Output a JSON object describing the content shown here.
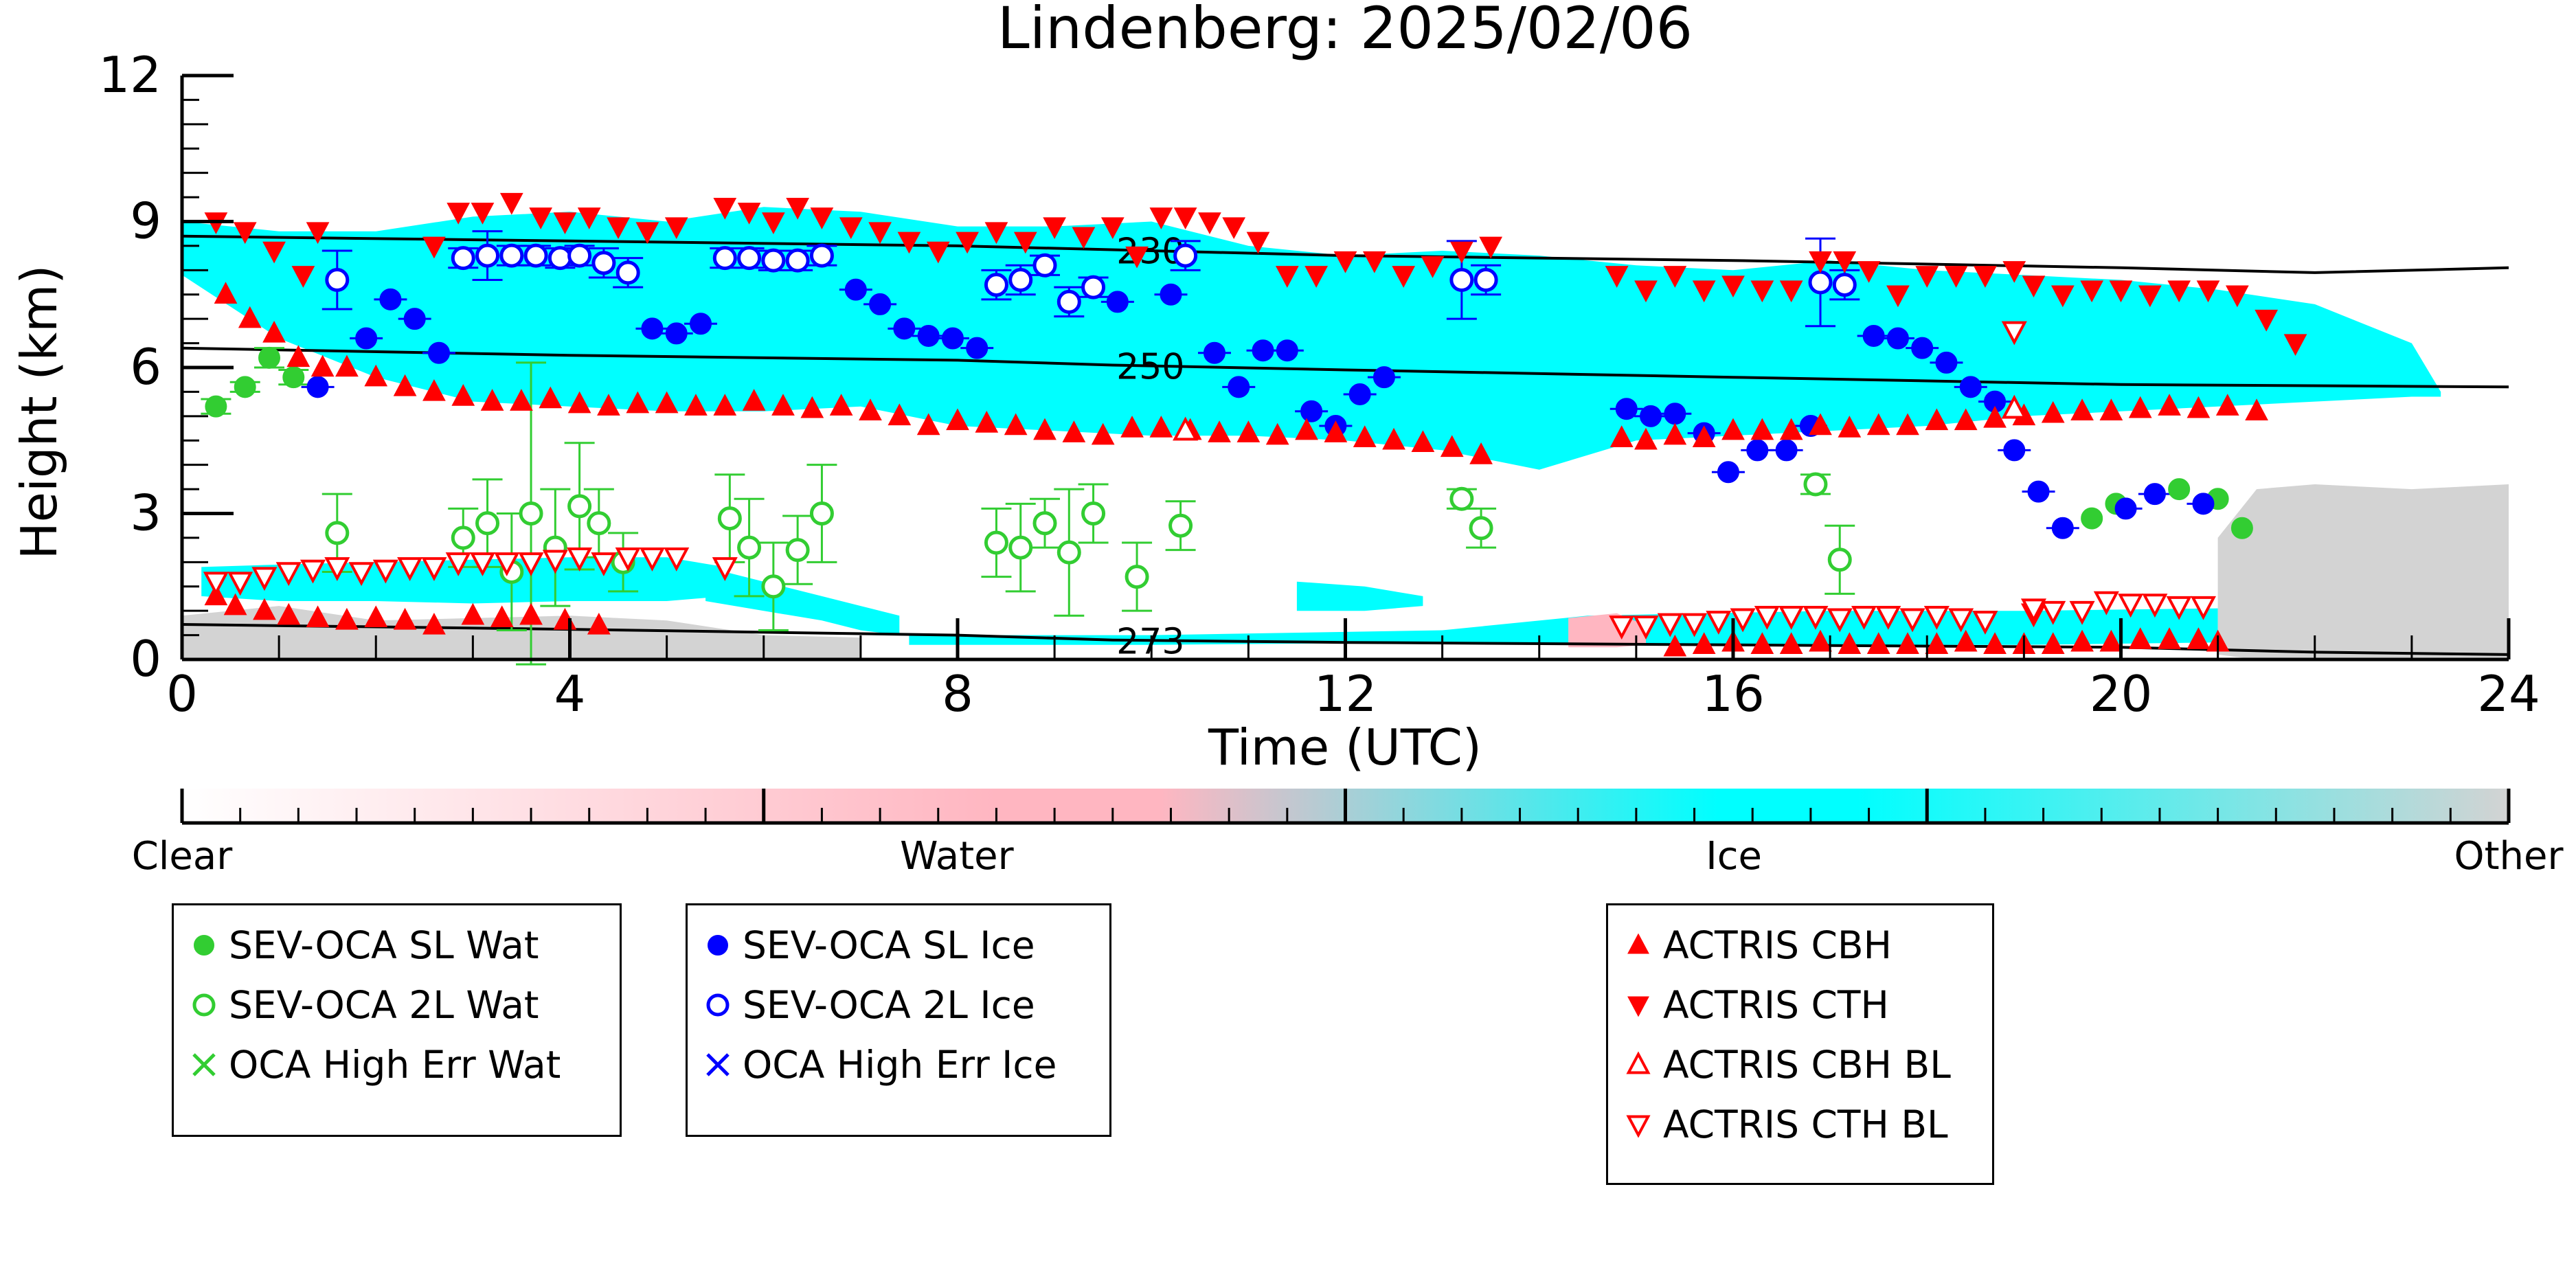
{
  "chart_data": {
    "type": "scatter",
    "title": "Lindenberg: 2025/02/06",
    "xlabel": "Time (UTC)",
    "ylabel": "Height (km)",
    "xlim": [
      0,
      24
    ],
    "ylim": [
      0,
      12
    ],
    "xticks": [
      "0",
      "4",
      "8",
      "12",
      "16",
      "20",
      "24"
    ],
    "yticks": [
      "0",
      "3",
      "6",
      "9",
      "12"
    ],
    "colorbar": {
      "labels": [
        "Clear",
        "Water",
        "Ice",
        "Other"
      ],
      "colors": [
        "#ffffff",
        "#ffb6c1",
        "#00ffff",
        "#d3d3d3"
      ]
    },
    "contours": [
      {
        "label": "230",
        "x": [
          0,
          4,
          8,
          10,
          12,
          16,
          20,
          22,
          24
        ],
        "y": [
          8.7,
          8.6,
          8.5,
          8.4,
          8.3,
          8.2,
          8.05,
          7.95,
          8.05
        ]
      },
      {
        "label": "250",
        "x": [
          0,
          4,
          8,
          9.6,
          12,
          16,
          20,
          24
        ],
        "y": [
          6.4,
          6.25,
          6.15,
          6.05,
          5.95,
          5.8,
          5.65,
          5.6
        ]
      },
      {
        "label": "273",
        "x": [
          0,
          4,
          8,
          9.6,
          12,
          16,
          20,
          22,
          24
        ],
        "y": [
          0.72,
          0.62,
          0.5,
          0.4,
          0.35,
          0.3,
          0.25,
          0.15,
          0.1
        ]
      }
    ],
    "cloud_regions": [
      {
        "type": "ice",
        "x": [
          0,
          1,
          2,
          3,
          4,
          5,
          6,
          7,
          8,
          9,
          10,
          11,
          12,
          13,
          14,
          15,
          16,
          17,
          18,
          19,
          20,
          21,
          22,
          23,
          23.3
        ],
        "top": [
          9.0,
          8.8,
          8.8,
          9.1,
          9.2,
          9.0,
          9.3,
          9.2,
          8.9,
          8.9,
          9.0,
          8.5,
          8.3,
          8.4,
          8.3,
          8.1,
          8.0,
          8.2,
          8.0,
          7.9,
          7.8,
          7.6,
          7.3,
          6.5,
          5.5
        ],
        "base": [
          7.9,
          6.6,
          5.8,
          5.3,
          5.2,
          5.1,
          5.1,
          5.2,
          4.8,
          4.7,
          4.6,
          4.6,
          4.5,
          4.3,
          3.9,
          4.5,
          4.6,
          4.7,
          4.8,
          5.0,
          5.1,
          5.2,
          5.3,
          5.4,
          5.4
        ]
      },
      {
        "type": "ice",
        "x": [
          0.2,
          1,
          2,
          3,
          4,
          5,
          5.6
        ],
        "top": [
          1.9,
          1.95,
          2.0,
          2.05,
          2.1,
          2.1,
          1.9
        ],
        "base": [
          1.3,
          1.2,
          1.2,
          1.15,
          1.2,
          1.2,
          1.3
        ]
      },
      {
        "type": "ice",
        "x": [
          5.4,
          6.0,
          6.6,
          7.0,
          7.4
        ],
        "top": [
          1.9,
          1.6,
          1.3,
          1.1,
          0.9
        ],
        "base": [
          1.2,
          1.0,
          0.8,
          0.6,
          0.5
        ]
      },
      {
        "type": "ice",
        "x": [
          11.5,
          12.2,
          12.8
        ],
        "top": [
          1.6,
          1.5,
          1.3
        ],
        "base": [
          1.0,
          1.0,
          1.1
        ]
      },
      {
        "type": "ice",
        "x": [
          7.5,
          10,
          13,
          14.5,
          17,
          19,
          21
        ],
        "top": [
          0.5,
          0.5,
          0.6,
          0.9,
          1.0,
          1.0,
          1.05
        ],
        "base": [
          0.3,
          0.3,
          0.35,
          0.3,
          0.3,
          0.3,
          0.35
        ]
      },
      {
        "type": "water",
        "x": [
          14.3,
          14.8,
          15.1
        ],
        "top": [
          0.85,
          0.95,
          0.7
        ],
        "base": [
          0.25,
          0.25,
          0.3
        ]
      },
      {
        "type": "other",
        "x": [
          0,
          1,
          2,
          3,
          4,
          5,
          6,
          7
        ],
        "top": [
          0.9,
          1.1,
          0.8,
          0.85,
          0.9,
          0.8,
          0.5,
          0.45
        ],
        "base": [
          0,
          0,
          0,
          0,
          0,
          0,
          0,
          0
        ]
      },
      {
        "type": "other",
        "x": [
          21.0,
          21.4,
          22,
          23,
          24
        ],
        "top": [
          2.5,
          3.5,
          3.6,
          3.5,
          3.6
        ],
        "base": [
          0.1,
          0,
          0,
          0,
          0
        ]
      }
    ],
    "series": [
      {
        "name": "SEV-OCA SL Wat",
        "marker": "filled-circle",
        "color": "#32cd32",
        "x": [
          0.35,
          0.65,
          0.9,
          1.15,
          19.7,
          19.95,
          20.6,
          21.0,
          21.25
        ],
        "y": [
          5.2,
          5.6,
          6.2,
          5.8,
          2.9,
          3.2,
          3.5,
          3.3,
          2.7
        ],
        "err": [
          0.15,
          0.1,
          0.2,
          0.15,
          0,
          0,
          0,
          0,
          0
        ]
      },
      {
        "name": "SEV-OCA 2L Wat",
        "marker": "open-circle",
        "color": "#32cd32",
        "x": [
          1.6,
          2.9,
          3.15,
          3.4,
          3.6,
          3.85,
          4.1,
          4.3,
          4.55,
          5.65,
          5.85,
          6.1,
          6.35,
          6.6,
          8.4,
          8.65,
          8.9,
          9.15,
          9.4,
          9.85,
          10.3,
          13.2,
          13.4,
          16.85,
          17.1
        ],
        "y": [
          2.6,
          2.5,
          2.8,
          1.8,
          3.0,
          2.3,
          3.15,
          2.8,
          2.0,
          2.9,
          2.3,
          1.5,
          2.25,
          3.0,
          2.4,
          2.3,
          2.8,
          2.2,
          3.0,
          1.7,
          2.75,
          3.3,
          2.7,
          3.6,
          2.05
        ],
        "err": [
          0.8,
          0.6,
          0.9,
          1.2,
          3.1,
          1.2,
          1.3,
          0.7,
          0.6,
          0.9,
          1.0,
          0.9,
          0.7,
          1.0,
          0.7,
          0.9,
          0.5,
          1.3,
          0.6,
          0.7,
          0.5,
          0.2,
          0.4,
          0.2,
          0.7
        ]
      },
      {
        "name": "OCA High Err Wat",
        "marker": "x",
        "color": "#32cd32",
        "x": [],
        "y": []
      },
      {
        "name": "SEV-OCA SL Ice",
        "marker": "filled-circle",
        "color": "#0000ff",
        "x": [
          1.4,
          1.9,
          2.15,
          2.4,
          2.65,
          4.85,
          5.1,
          5.35,
          6.95,
          7.2,
          7.45,
          7.7,
          7.95,
          8.2,
          9.65,
          10.2,
          10.65,
          10.9,
          11.15,
          11.4,
          11.65,
          11.9,
          12.15,
          12.4,
          14.9,
          15.15,
          15.4,
          15.7,
          15.95,
          16.25,
          16.55,
          16.8,
          17.45,
          17.7,
          17.95,
          18.2,
          18.45,
          18.7,
          18.9,
          19.15,
          19.4,
          20.05,
          20.35,
          20.85
        ],
        "y": [
          5.6,
          6.6,
          7.4,
          7.0,
          6.3,
          6.8,
          6.7,
          6.9,
          7.6,
          7.3,
          6.8,
          6.65,
          6.6,
          6.4,
          7.35,
          7.5,
          6.3,
          5.6,
          6.35,
          6.35,
          5.1,
          4.8,
          5.45,
          5.8,
          5.15,
          5.0,
          5.05,
          4.65,
          3.85,
          4.3,
          4.3,
          4.8,
          6.65,
          6.6,
          6.4,
          6.1,
          5.6,
          5.3,
          4.3,
          3.45,
          2.7,
          3.1,
          3.4,
          3.2
        ],
        "err": [
          0,
          0,
          0,
          0,
          0,
          0,
          0,
          0,
          0,
          0,
          0,
          0,
          0,
          0,
          0,
          0,
          0,
          0,
          0,
          0,
          0,
          0,
          0,
          0,
          0,
          0,
          0,
          0,
          0,
          0,
          0,
          0,
          0,
          0,
          0,
          0,
          0,
          0,
          0,
          0,
          0,
          0,
          0,
          0
        ]
      },
      {
        "name": "SEV-OCA 2L Ice",
        "marker": "open-circle",
        "color": "#0000ff",
        "x": [
          1.6,
          2.9,
          3.15,
          3.4,
          3.65,
          3.9,
          4.1,
          4.35,
          4.6,
          5.6,
          5.85,
          6.1,
          6.35,
          6.6,
          8.4,
          8.65,
          8.9,
          9.15,
          9.4,
          10.35,
          13.2,
          13.45,
          16.9,
          17.15
        ],
        "y": [
          7.8,
          8.25,
          8.3,
          8.3,
          8.3,
          8.25,
          8.3,
          8.15,
          7.95,
          8.25,
          8.25,
          8.2,
          8.2,
          8.3,
          7.7,
          7.8,
          8.1,
          7.35,
          7.65,
          8.3,
          7.8,
          7.8,
          7.75,
          7.7
        ],
        "err": [
          0.6,
          0.2,
          0.5,
          0.2,
          0.2,
          0.2,
          0.2,
          0.3,
          0.3,
          0.2,
          0.2,
          0.2,
          0.2,
          0.2,
          0.3,
          0.3,
          0.2,
          0.3,
          0.2,
          0.3,
          0.8,
          0.3,
          0.9,
          0.3
        ]
      },
      {
        "name": "OCA High Err Ice",
        "marker": "x",
        "color": "#0000ff",
        "x": [],
        "y": []
      },
      {
        "name": "ACTRIS CBH",
        "marker": "triangle-up",
        "color": "#ff0000",
        "x": [
          0.45,
          0.7,
          0.95,
          1.2,
          1.45,
          1.7,
          2.0,
          2.3,
          2.6,
          2.9,
          3.2,
          3.5,
          3.8,
          4.1,
          4.4,
          4.7,
          5.0,
          5.3,
          5.6,
          5.9,
          6.2,
          6.5,
          6.8,
          7.1,
          7.4,
          7.7,
          8.0,
          8.3,
          8.6,
          8.9,
          9.2,
          9.5,
          9.8,
          10.1,
          10.4,
          10.7,
          11.0,
          11.3,
          11.6,
          11.9,
          12.2,
          12.5,
          12.8,
          13.1,
          13.4,
          14.85,
          15.1,
          15.4,
          15.7,
          16.0,
          16.3,
          16.6,
          16.9,
          17.2,
          17.5,
          17.8,
          18.1,
          18.4,
          18.7,
          19.0,
          19.3,
          19.6,
          19.9,
          20.2,
          20.5,
          20.8,
          21.1,
          21.4,
          0.35,
          0.55,
          0.85,
          1.1,
          1.4,
          1.7,
          2.0,
          2.3,
          2.6,
          3.0,
          3.3,
          3.6,
          3.95,
          4.3,
          15.4,
          15.7,
          16.0,
          16.3,
          16.6,
          16.9,
          17.2,
          17.5,
          17.8,
          18.1,
          18.4,
          18.7,
          19.0,
          19.3,
          19.6,
          19.9,
          20.2,
          20.5,
          20.8,
          21.0
        ],
        "y": [
          7.5,
          7.0,
          6.7,
          6.2,
          6.0,
          6.0,
          5.8,
          5.6,
          5.5,
          5.4,
          5.3,
          5.3,
          5.35,
          5.25,
          5.2,
          5.25,
          5.25,
          5.2,
          5.2,
          5.3,
          5.2,
          5.15,
          5.2,
          5.1,
          5.0,
          4.8,
          4.9,
          4.85,
          4.8,
          4.7,
          4.65,
          4.6,
          4.75,
          4.75,
          4.7,
          4.65,
          4.65,
          4.6,
          4.7,
          4.65,
          4.55,
          4.5,
          4.45,
          4.35,
          4.2,
          4.55,
          4.5,
          4.6,
          4.55,
          4.7,
          4.7,
          4.7,
          4.8,
          4.75,
          4.8,
          4.8,
          4.9,
          4.9,
          4.95,
          5.0,
          5.05,
          5.1,
          5.1,
          5.15,
          5.2,
          5.15,
          5.2,
          5.1,
          1.3,
          1.1,
          1.0,
          0.9,
          0.85,
          0.8,
          0.85,
          0.8,
          0.7,
          0.9,
          0.85,
          0.9,
          0.8,
          0.7,
          0.25,
          0.3,
          0.35,
          0.3,
          0.3,
          0.35,
          0.3,
          0.3,
          0.3,
          0.3,
          0.35,
          0.3,
          0.3,
          0.3,
          0.35,
          0.35,
          0.4,
          0.4,
          0.4,
          0.35
        ]
      },
      {
        "name": "ACTRIS CTH",
        "marker": "triangle-down",
        "color": "#ff0000",
        "x": [
          0.35,
          0.65,
          0.95,
          1.25,
          1.4,
          2.6,
          2.85,
          3.1,
          3.4,
          3.7,
          3.95,
          4.2,
          4.5,
          4.8,
          5.1,
          5.6,
          5.85,
          6.1,
          6.35,
          6.6,
          6.9,
          7.2,
          7.5,
          7.8,
          8.1,
          8.4,
          8.7,
          9.0,
          9.3,
          9.6,
          9.85,
          10.1,
          10.35,
          10.6,
          10.85,
          11.1,
          11.4,
          11.7,
          12.0,
          12.3,
          12.6,
          12.9,
          13.2,
          13.5,
          14.8,
          15.1,
          15.4,
          15.7,
          16.0,
          16.3,
          16.6,
          16.9,
          17.15,
          17.4,
          17.7,
          18.0,
          18.3,
          18.6,
          18.9,
          19.1,
          19.4,
          19.7,
          20.0,
          20.3,
          20.6,
          20.9,
          21.2,
          21.5,
          21.8
        ],
        "y": [
          9.0,
          8.8,
          8.4,
          7.9,
          8.8,
          8.5,
          9.2,
          9.2,
          9.4,
          9.1,
          9.0,
          9.1,
          8.9,
          8.8,
          8.9,
          9.3,
          9.2,
          9.0,
          9.3,
          9.1,
          8.9,
          8.8,
          8.6,
          8.4,
          8.6,
          8.8,
          8.6,
          8.9,
          8.7,
          8.9,
          8.3,
          9.1,
          9.1,
          9.0,
          8.9,
          8.6,
          7.9,
          7.9,
          8.2,
          8.2,
          7.9,
          8.1,
          8.4,
          8.5,
          7.9,
          7.6,
          7.9,
          7.6,
          7.7,
          7.6,
          7.6,
          8.2,
          8.2,
          8.0,
          7.5,
          7.9,
          7.9,
          7.9,
          8.0,
          7.7,
          7.5,
          7.6,
          7.6,
          7.5,
          7.6,
          7.6,
          7.5,
          7.0,
          6.5
        ]
      },
      {
        "name": "ACTRIS CBH BL",
        "marker": "open-triangle-up",
        "color": "#ff0000",
        "x": [
          10.35,
          18.9
        ],
        "y": [
          4.7,
          5.15
        ]
      },
      {
        "name": "ACTRIS CTH BL",
        "marker": "open-triangle-down",
        "color": "#ff0000",
        "x": [
          0.35,
          0.6,
          0.85,
          1.1,
          1.35,
          1.6,
          1.85,
          2.1,
          2.35,
          2.6,
          2.85,
          3.1,
          3.35,
          3.6,
          3.85,
          4.1,
          4.35,
          4.6,
          4.85,
          5.1,
          5.6,
          14.85,
          15.1,
          15.35,
          15.6,
          15.85,
          16.1,
          16.35,
          16.6,
          16.85,
          17.1,
          17.35,
          17.6,
          17.85,
          18.1,
          18.35,
          18.6,
          18.9,
          19.1,
          19.3,
          19.6,
          19.85,
          20.1,
          20.35,
          20.6,
          20.85,
          19.1
        ],
        "y": [
          1.6,
          1.6,
          1.7,
          1.8,
          1.85,
          1.9,
          1.8,
          1.85,
          1.9,
          1.9,
          2.0,
          2.0,
          2.0,
          2.0,
          2.05,
          2.1,
          2.0,
          2.1,
          2.1,
          2.1,
          1.9,
          0.7,
          0.7,
          0.75,
          0.75,
          0.8,
          0.85,
          0.9,
          0.9,
          0.9,
          0.85,
          0.9,
          0.9,
          0.85,
          0.9,
          0.85,
          0.8,
          6.75,
          0.95,
          1.0,
          1.0,
          1.2,
          1.15,
          1.15,
          1.1,
          1.1,
          1.05
        ]
      }
    ]
  },
  "legend_groups": [
    {
      "items": [
        {
          "label": "SEV-OCA SL Wat",
          "marker": "filled-circle",
          "color": "#32cd32"
        },
        {
          "label": "SEV-OCA 2L Wat",
          "marker": "open-circle",
          "color": "#32cd32"
        },
        {
          "label": "OCA High Err Wat",
          "marker": "x",
          "color": "#32cd32"
        }
      ]
    },
    {
      "items": [
        {
          "label": "SEV-OCA SL Ice",
          "marker": "filled-circle",
          "color": "#0000ff"
        },
        {
          "label": "SEV-OCA 2L Ice",
          "marker": "open-circle",
          "color": "#0000ff"
        },
        {
          "label": "OCA High Err Ice",
          "marker": "x",
          "color": "#0000ff"
        }
      ]
    },
    {
      "items": [
        {
          "label": "ACTRIS CBH",
          "marker": "triangle-up",
          "color": "#ff0000"
        },
        {
          "label": "ACTRIS CTH",
          "marker": "triangle-down",
          "color": "#ff0000"
        },
        {
          "label": "ACTRIS CBH BL",
          "marker": "open-triangle-up",
          "color": "#ff0000"
        },
        {
          "label": "ACTRIS CTH BL",
          "marker": "open-triangle-down",
          "color": "#ff0000"
        }
      ]
    }
  ]
}
